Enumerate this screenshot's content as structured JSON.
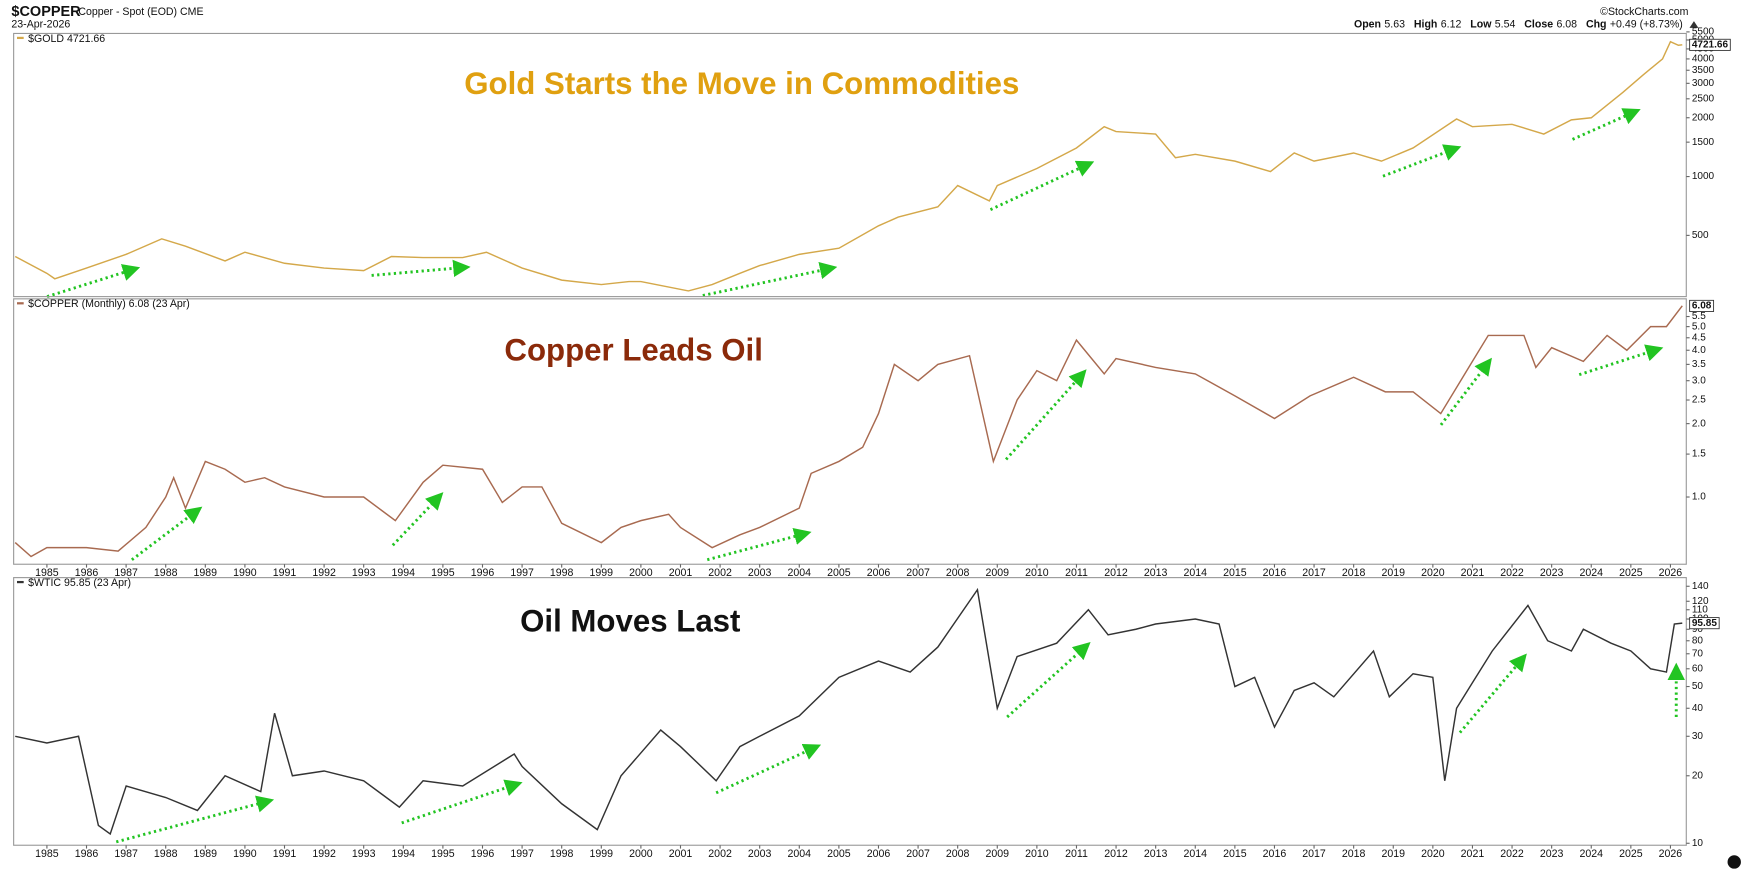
{
  "header": {
    "symbol": "$COPPER",
    "description": "Copper - Spot (EOD) CME",
    "date": "23-Apr-2026",
    "credit": "©StockCharts.com",
    "quote": [
      {
        "label": "Open",
        "value": 5.63
      },
      {
        "label": "High",
        "value": 6.12
      },
      {
        "label": "Low",
        "value": 5.54
      },
      {
        "label": "Close",
        "value": 6.08
      },
      {
        "label": "Chg",
        "value": "+0.49 (+8.73%)"
      }
    ]
  },
  "chart_data": [
    {
      "type": "line",
      "title": "Gold Starts the Move in Commodities",
      "log": true,
      "xlim": [
        1984.16,
        2026.4
      ],
      "ylim": [
        243,
        5400
      ],
      "yticks": [
        500,
        1000,
        1500,
        2000,
        2500,
        3000,
        3500,
        4000,
        4500,
        5000,
        5500
      ],
      "x": [
        1984.2,
        1985.0,
        1985.2,
        1986,
        1987,
        1987.9,
        1988.5,
        1989.5,
        1990,
        1991,
        1992,
        1993,
        1993.7,
        1994.5,
        1995.5,
        1996.1,
        1997,
        1998,
        1999,
        1999.7,
        2000,
        2001.2,
        2001.8,
        2002.5,
        2003,
        2004,
        2005,
        2006,
        2006.5,
        2007.5,
        2008,
        2008.8,
        2009,
        2010,
        2011,
        2011.7,
        2012,
        2013,
        2013.5,
        2014,
        2015,
        2015.9,
        2016.5,
        2017,
        2018,
        2018.7,
        2019.5,
        2020.6,
        2021,
        2022,
        2022.8,
        2023.5,
        2024,
        2024.8,
        2025.3,
        2025.8,
        2026.0,
        2026.2,
        2026.3
      ],
      "series": [
        {
          "name": "$GOLD 4721.66",
          "color": "#d4a84a",
          "values": [
            390,
            320,
            300,
            340,
            400,
            480,
            440,
            370,
            410,
            360,
            340,
            330,
            390,
            385,
            385,
            410,
            340,
            295,
            280,
            290,
            290,
            260,
            280,
            320,
            350,
            400,
            430,
            560,
            620,
            700,
            900,
            750,
            900,
            1100,
            1400,
            1800,
            1700,
            1650,
            1250,
            1300,
            1200,
            1060,
            1320,
            1200,
            1320,
            1200,
            1400,
            1970,
            1800,
            1850,
            1650,
            1950,
            2000,
            2700,
            3300,
            4000,
            4900,
            4700,
            4721.66
          ]
        }
      ]
    },
    {
      "type": "line",
      "title": "Copper Leads Oil",
      "log": true,
      "xlim": [
        1984.16,
        2026.4
      ],
      "ylim": [
        0.53,
        6.5
      ],
      "yticks": [
        {
          "value": 1,
          "label": "1.0"
        },
        1.5,
        {
          "value": 2,
          "label": "2.0"
        },
        2.5,
        {
          "value": 3,
          "label": "3.0"
        },
        3.5,
        {
          "value": 4,
          "label": "4.0"
        },
        4.5,
        {
          "value": 5,
          "label": "5.0"
        },
        5.5
      ],
      "xticks": [
        1985,
        1986,
        1987,
        1988,
        1989,
        1990,
        1991,
        1992,
        1993,
        1994,
        1995,
        1996,
        1997,
        1998,
        1999,
        2000,
        2001,
        2002,
        2003,
        2004,
        2005,
        2006,
        2007,
        2008,
        2009,
        2010,
        2011,
        2012,
        2013,
        2014,
        2015,
        2016,
        2017,
        2018,
        2019,
        2020,
        2021,
        2022,
        2023,
        2024,
        2025,
        2026
      ],
      "x": [
        1984.2,
        1984.6,
        1985,
        1986,
        1986.8,
        1987.5,
        1988,
        1988.2,
        1988.5,
        1989,
        1989.5,
        1990,
        1990.5,
        1991,
        1992,
        1993,
        1993.8,
        1994.5,
        1995,
        1996,
        1996.5,
        1997,
        1997.5,
        1998,
        1999,
        1999.5,
        2000,
        2000.7,
        2001,
        2001.8,
        2002.5,
        2003,
        2004,
        2004.3,
        2005,
        2005.6,
        2006,
        2006.4,
        2007,
        2007.5,
        2008.3,
        2008.9,
        2009.5,
        2010,
        2010.5,
        2011,
        2011.7,
        2012,
        2013,
        2014,
        2015,
        2016,
        2016.9,
        2018,
        2018.8,
        2019.5,
        2020.2,
        2021,
        2021.4,
        2022.3,
        2022.6,
        2023,
        2023.8,
        2024.4,
        2024.9,
        2025.5,
        2025.9,
        2026.3
      ],
      "series": [
        {
          "name": "$COPPER (Monthly) 6.08 (23 Apr)",
          "color": "#a86a50",
          "values": [
            0.65,
            0.57,
            0.62,
            0.62,
            0.6,
            0.75,
            1.0,
            1.2,
            0.9,
            1.4,
            1.3,
            1.15,
            1.2,
            1.1,
            1.0,
            1.0,
            0.8,
            1.15,
            1.35,
            1.3,
            0.95,
            1.1,
            1.1,
            0.78,
            0.65,
            0.75,
            0.8,
            0.85,
            0.75,
            0.62,
            0.7,
            0.75,
            0.9,
            1.25,
            1.4,
            1.6,
            2.2,
            3.5,
            3.0,
            3.5,
            3.8,
            1.4,
            2.5,
            3.3,
            3.0,
            4.4,
            3.2,
            3.7,
            3.4,
            3.2,
            2.6,
            2.1,
            2.6,
            3.1,
            2.7,
            2.7,
            2.2,
            3.6,
            4.6,
            4.6,
            3.4,
            4.1,
            3.6,
            4.6,
            4.0,
            5.0,
            5.0,
            6.08
          ]
        }
      ]
    },
    {
      "type": "line",
      "title": "Oil Moves Last",
      "log": true,
      "xlim": [
        1984.16,
        2026.4
      ],
      "ylim": [
        9.8,
        153
      ],
      "yticks": [
        10,
        20,
        30,
        40,
        50,
        60,
        70,
        80,
        90,
        100,
        110,
        120,
        140
      ],
      "xticks": [
        1985,
        1986,
        1987,
        1988,
        1989,
        1990,
        1991,
        1992,
        1993,
        1994,
        1995,
        1996,
        1997,
        1998,
        1999,
        2000,
        2001,
        2002,
        2003,
        2004,
        2005,
        2006,
        2007,
        2008,
        2009,
        2010,
        2011,
        2012,
        2013,
        2014,
        2015,
        2016,
        2017,
        2018,
        2019,
        2020,
        2021,
        2022,
        2023,
        2024,
        2025,
        2026
      ],
      "x": [
        1984.2,
        1985,
        1985.8,
        1986.3,
        1986.6,
        1987,
        1988,
        1988.8,
        1989.5,
        1990.4,
        1990.75,
        1991.2,
        1992,
        1993,
        1993.9,
        1994.5,
        1995.5,
        1996.8,
        1997,
        1998,
        1998.9,
        1999.5,
        2000.5,
        2001,
        2001.9,
        2002.5,
        2003,
        2004,
        2005,
        2006,
        2006.8,
        2007.5,
        2008.5,
        2009,
        2009.5,
        2010.5,
        2011.3,
        2011.8,
        2012.5,
        2013,
        2014,
        2014.6,
        2015,
        2015.5,
        2016,
        2016.5,
        2017,
        2017.5,
        2018.5,
        2018.9,
        2019.5,
        2020,
        2020.3,
        2020.6,
        2021,
        2021.5,
        2022.4,
        2022.9,
        2023.5,
        2023.8,
        2024.5,
        2025,
        2025.5,
        2025.9,
        2026.1,
        2026.3
      ],
      "series": [
        {
          "name": "$WTIC 95.85 (23 Apr)",
          "color": "#333333",
          "values": [
            30,
            28,
            30,
            12,
            11,
            18,
            16,
            14,
            20,
            17,
            38,
            20,
            21,
            19,
            14.5,
            19,
            18,
            25,
            22,
            15,
            11.5,
            20,
            32,
            27,
            19,
            27,
            30,
            37,
            55,
            65,
            58,
            75,
            135,
            40,
            68,
            78,
            110,
            85,
            90,
            95,
            100,
            95,
            50,
            55,
            33,
            48,
            52,
            45,
            72,
            45,
            57,
            55,
            19,
            40,
            52,
            72,
            115,
            80,
            72,
            90,
            78,
            72,
            60,
            58,
            95,
            95.85
          ]
        }
      ]
    }
  ]
}
